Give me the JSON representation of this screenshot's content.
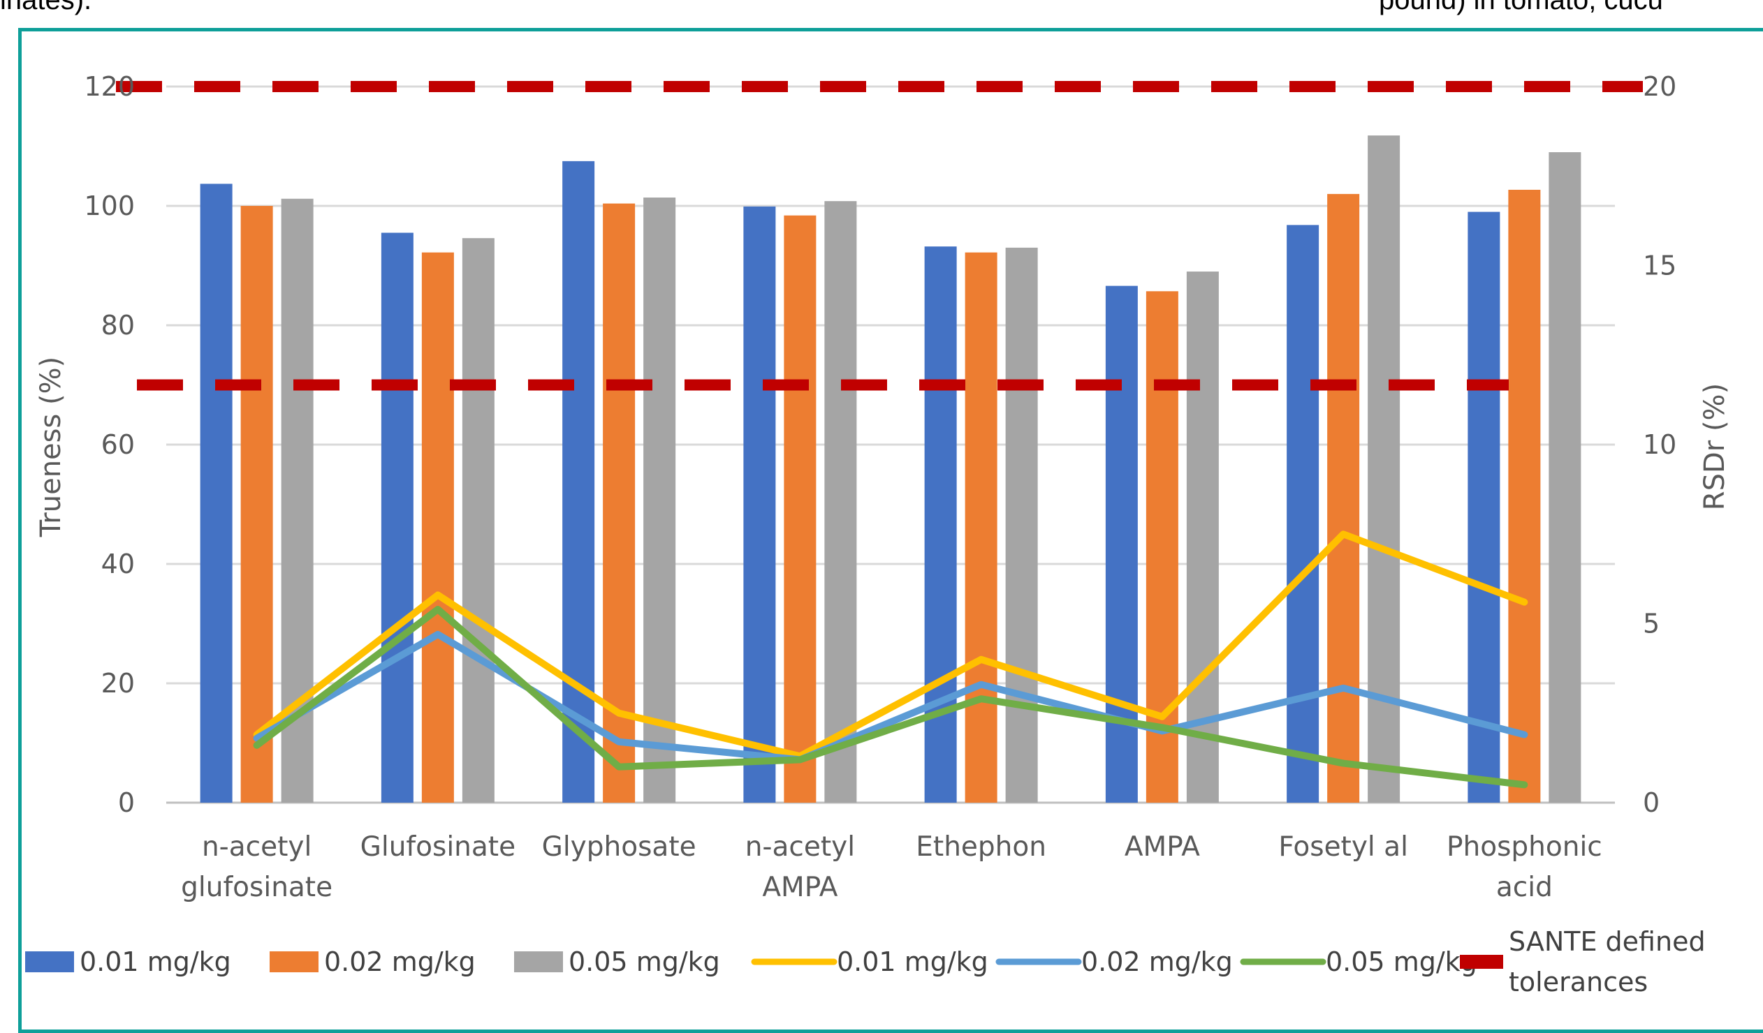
{
  "clipped_text": {
    "left": "inates).",
    "right": "pound) in tomato, cucu"
  },
  "chart_data": {
    "type": "bar",
    "categories": [
      "n-acetyl glufosinate",
      "Glufosinate",
      "Glyphosate",
      "n-acetyl AMPA",
      "Ethephon",
      "AMPA",
      "Fosetyl al",
      "Phosphonic acid"
    ],
    "category_lines": [
      [
        "n-acetyl",
        "glufosinate"
      ],
      [
        "Glufosinate"
      ],
      [
        "Glyphosate"
      ],
      [
        "n-acetyl",
        "AMPA"
      ],
      [
        "Ethephon"
      ],
      [
        "AMPA"
      ],
      [
        "Fosetyl al"
      ],
      [
        "Phosphonic",
        "acid"
      ]
    ],
    "ylabel": "Trueness (%)",
    "y2label": "RSDr (%)",
    "ylim": [
      0,
      120
    ],
    "y2lim": [
      0,
      20
    ],
    "yticks": [
      0,
      20,
      40,
      60,
      80,
      100,
      120
    ],
    "y2ticks": [
      0,
      5,
      10,
      15,
      20
    ],
    "grid": true,
    "legend_position": "bottom",
    "bar_series": [
      {
        "name": "0.01 mg/kg",
        "color": "#4472c4",
        "values": [
          103.7,
          95.5,
          107.5,
          99.9,
          93.2,
          86.6,
          96.8,
          99.0
        ]
      },
      {
        "name": "0.02 mg/kg",
        "color": "#ed7d31",
        "values": [
          100.0,
          92.2,
          100.4,
          98.4,
          92.2,
          85.7,
          102.0,
          102.7
        ]
      },
      {
        "name": "0.05 mg/kg",
        "color": "#a5a5a5",
        "values": [
          101.2,
          94.6,
          101.4,
          100.8,
          93.0,
          89.0,
          111.8,
          109.0
        ]
      }
    ],
    "line_series": [
      {
        "name": "0.01 mg/kg",
        "color": "#ffc000",
        "axis": "right",
        "values": [
          1.9,
          5.8,
          2.5,
          1.3,
          4.0,
          2.4,
          7.5,
          5.6
        ]
      },
      {
        "name": "0.02 mg/kg",
        "color": "#5b9bd5",
        "axis": "right",
        "values": [
          1.8,
          4.7,
          1.7,
          1.2,
          3.3,
          2.0,
          3.2,
          1.9
        ]
      },
      {
        "name": "0.05 mg/kg",
        "color": "#70ad47",
        "axis": "right",
        "values": [
          1.6,
          5.4,
          1.0,
          1.2,
          2.9,
          2.1,
          1.1,
          0.5
        ]
      }
    ],
    "reference_lines": {
      "name": "SANTE defined tolerances",
      "name_lines": [
        "SANTE defined",
        "tolerances"
      ],
      "color": "#c00000",
      "style": "dashed",
      "trueness_values": [
        120,
        70
      ]
    }
  }
}
